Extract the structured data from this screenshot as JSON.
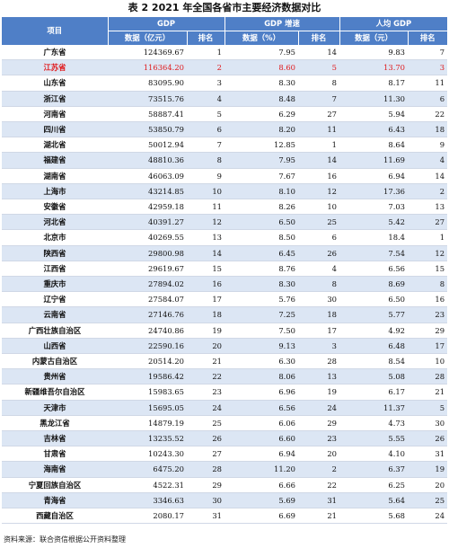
{
  "caption": "表 2 2021 年全国各省市主要经济数据对比",
  "headers": {
    "item": "项目",
    "gdp": "GDP",
    "gdp_growth": "GDP 增速",
    "per_capita": "人均 GDP",
    "gdp_value": "数据（亿元）",
    "gdp_rank": "排名",
    "growth_value": "数据（%）",
    "growth_rank": "排名",
    "pc_value": "数据（元）",
    "pc_rank": "排名"
  },
  "colors": {
    "header_bg": "#4f7fc7",
    "stripe": "#dce6f4",
    "highlight_text": "#e0191c"
  },
  "highlight_row": "江苏省",
  "rows": [
    [
      "广东省",
      "124369.67",
      "1",
      "7.95",
      "14",
      "9.83",
      "7"
    ],
    [
      "江苏省",
      "116364.20",
      "2",
      "8.60",
      "5",
      "13.70",
      "3"
    ],
    [
      "山东省",
      "83095.90",
      "3",
      "8.30",
      "8",
      "8.17",
      "11"
    ],
    [
      "浙江省",
      "73515.76",
      "4",
      "8.48",
      "7",
      "11.30",
      "6"
    ],
    [
      "河南省",
      "58887.41",
      "5",
      "6.29",
      "27",
      "5.94",
      "22"
    ],
    [
      "四川省",
      "53850.79",
      "6",
      "8.20",
      "11",
      "6.43",
      "18"
    ],
    [
      "湖北省",
      "50012.94",
      "7",
      "12.85",
      "1",
      "8.64",
      "9"
    ],
    [
      "福建省",
      "48810.36",
      "8",
      "7.95",
      "14",
      "11.69",
      "4"
    ],
    [
      "湖南省",
      "46063.09",
      "9",
      "7.67",
      "16",
      "6.94",
      "14"
    ],
    [
      "上海市",
      "43214.85",
      "10",
      "8.10",
      "12",
      "17.36",
      "2"
    ],
    [
      "安徽省",
      "42959.18",
      "11",
      "8.26",
      "10",
      "7.03",
      "13"
    ],
    [
      "河北省",
      "40391.27",
      "12",
      "6.50",
      "25",
      "5.42",
      "27"
    ],
    [
      "北京市",
      "40269.55",
      "13",
      "8.50",
      "6",
      "18.4",
      "1"
    ],
    [
      "陕西省",
      "29800.98",
      "14",
      "6.45",
      "26",
      "7.54",
      "12"
    ],
    [
      "江西省",
      "29619.67",
      "15",
      "8.76",
      "4",
      "6.56",
      "15"
    ],
    [
      "重庆市",
      "27894.02",
      "16",
      "8.30",
      "8",
      "8.69",
      "8"
    ],
    [
      "辽宁省",
      "27584.07",
      "17",
      "5.76",
      "30",
      "6.50",
      "16"
    ],
    [
      "云南省",
      "27146.76",
      "18",
      "7.25",
      "18",
      "5.77",
      "23"
    ],
    [
      "广西壮族自治区",
      "24740.86",
      "19",
      "7.50",
      "17",
      "4.92",
      "29"
    ],
    [
      "山西省",
      "22590.16",
      "20",
      "9.13",
      "3",
      "6.48",
      "17"
    ],
    [
      "内蒙古自治区",
      "20514.20",
      "21",
      "6.30",
      "28",
      "8.54",
      "10"
    ],
    [
      "贵州省",
      "19586.42",
      "22",
      "8.06",
      "13",
      "5.08",
      "28"
    ],
    [
      "新疆维吾尔自治区",
      "15983.65",
      "23",
      "6.96",
      "19",
      "6.17",
      "21"
    ],
    [
      "天津市",
      "15695.05",
      "24",
      "6.56",
      "24",
      "11.37",
      "5"
    ],
    [
      "黑龙江省",
      "14879.19",
      "25",
      "6.06",
      "29",
      "4.73",
      "30"
    ],
    [
      "吉林省",
      "13235.52",
      "26",
      "6.60",
      "23",
      "5.55",
      "26"
    ],
    [
      "甘肃省",
      "10243.30",
      "27",
      "6.94",
      "20",
      "4.10",
      "31"
    ],
    [
      "海南省",
      "6475.20",
      "28",
      "11.20",
      "2",
      "6.37",
      "19"
    ],
    [
      "宁夏回族自治区",
      "4522.31",
      "29",
      "6.66",
      "22",
      "6.25",
      "20"
    ],
    [
      "青海省",
      "3346.63",
      "30",
      "5.69",
      "31",
      "5.64",
      "25"
    ],
    [
      "西藏自治区",
      "2080.17",
      "31",
      "6.69",
      "21",
      "5.68",
      "24"
    ]
  ],
  "source": "资料来源：联合资信根据公开资料整理"
}
